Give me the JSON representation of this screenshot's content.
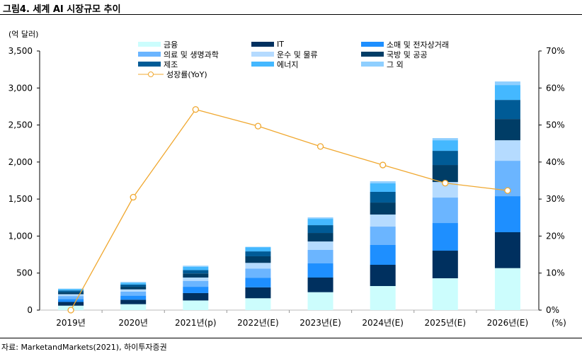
{
  "title": "그림4.  세계 AI 시장규모 추이",
  "unit_label": "(억 달러)",
  "source": "자료: MarketandMarkets(2021), 하이투자증권",
  "chart_data": {
    "type": "bar",
    "stacked": true,
    "title": "",
    "categories": [
      "2019년",
      "2020년",
      "2021년(p)",
      "2022년(E)",
      "2023년(E)",
      "2024년(E)",
      "2025년(E)",
      "2026년(E)"
    ],
    "y_left": {
      "label": "(억 달러)",
      "range": [
        0,
        3500
      ],
      "ticks": [
        "0",
        "500",
        "1,000",
        "1,500",
        "2,000",
        "2,500",
        "3,000",
        "3,500"
      ]
    },
    "y_right": {
      "label": "(%)",
      "range": [
        0,
        70
      ],
      "ticks": [
        "0%",
        "10%",
        "20%",
        "30%",
        "40%",
        "50%",
        "60%",
        "70%"
      ]
    },
    "grid": false,
    "legend_position": "top",
    "series": [
      {
        "name": "금융",
        "color": "#ccfdfd",
        "values": [
          60,
          80,
          130,
          160,
          242,
          325,
          430,
          567
        ]
      },
      {
        "name": "IT",
        "color": "#00305f",
        "values": [
          50,
          60,
          100,
          147,
          198,
          287,
          373,
          485
        ]
      },
      {
        "name": "소매 및 전자상거래",
        "color": "#1e8fff",
        "values": [
          40,
          55,
          85,
          131,
          191,
          268,
          373,
          487
        ]
      },
      {
        "name": "의료 및 생명과학",
        "color": "#6bb5ff",
        "values": [
          40,
          55,
          80,
          124,
          182,
          248,
          344,
          478
        ]
      },
      {
        "name": "운수 및 물류",
        "color": "#b5dbff",
        "values": [
          25,
          30,
          45,
          76,
          114,
          163,
          210,
          277
        ]
      },
      {
        "name": "국방 및 공공",
        "color": "#003d66",
        "values": [
          25,
          35,
          55,
          89,
          115,
          162,
          230,
          287
        ]
      },
      {
        "name": "제조",
        "color": "#005b96",
        "values": [
          25,
          30,
          45,
          66,
          105,
          144,
          191,
          258
        ]
      },
      {
        "name": "에너지",
        "color": "#44b8ff",
        "values": [
          20,
          25,
          45,
          57,
          86,
          115,
          143,
          201
        ]
      },
      {
        "name": "그 외",
        "color": "#8fcfff",
        "values": [
          5,
          10,
          15,
          5,
          19,
          28,
          29,
          48
        ]
      }
    ],
    "line": {
      "name": "성장률(YoY)",
      "color": "#f0a830",
      "axis": "right",
      "values": [
        0,
        30.5,
        54.2,
        49.7,
        44.2,
        39.2,
        34.3,
        32.3
      ]
    }
  }
}
